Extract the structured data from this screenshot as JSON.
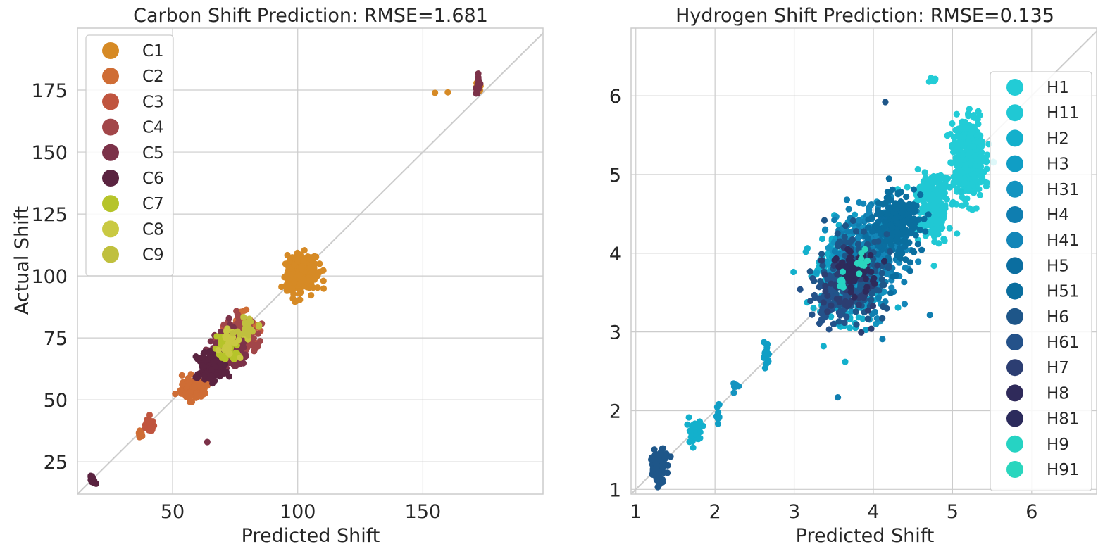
{
  "chart_data": [
    {
      "type": "scatter",
      "title": "Carbon Shift Prediction: RMSE=1.681",
      "xlabel": "Predicted Shift",
      "ylabel": "Actual Shift",
      "xlim": [
        12,
        198
      ],
      "ylim": [
        12,
        200
      ],
      "xticks": [
        50,
        100,
        150
      ],
      "yticks": [
        25,
        50,
        75,
        100,
        125,
        150,
        175
      ],
      "grid": true,
      "diagonal": "y = x reference line",
      "legend_position": "upper-left",
      "series": [
        {
          "name": "C1",
          "color": "#d68a25",
          "clusters": [
            {
              "x": 101,
              "y": 101,
              "sx": 3.0,
              "sy": 4.0,
              "n": 260
            },
            {
              "x": 172,
              "y": 176,
              "sx": 0.6,
              "sy": 1.2,
              "n": 10
            },
            {
              "x": 160,
              "y": 174,
              "sx": 0.1,
              "sy": 0.1,
              "n": 1
            },
            {
              "x": 155,
              "y": 174,
              "sx": 0.1,
              "sy": 0.1,
              "n": 1
            }
          ]
        },
        {
          "name": "C2",
          "color": "#cf6d35",
          "clusters": [
            {
              "x": 58,
              "y": 55,
              "sx": 2.8,
              "sy": 2.2,
              "n": 90
            },
            {
              "x": 79,
              "y": 80,
              "sx": 2.5,
              "sy": 3.0,
              "n": 40
            },
            {
              "x": 37,
              "y": 36,
              "sx": 0.6,
              "sy": 1.0,
              "n": 12
            }
          ]
        },
        {
          "name": "C3",
          "color": "#c0553f",
          "clusters": [
            {
              "x": 41,
              "y": 40,
              "sx": 0.8,
              "sy": 2.0,
              "n": 30
            },
            {
              "x": 77,
              "y": 76,
              "sx": 3.0,
              "sy": 3.0,
              "n": 80
            }
          ]
        },
        {
          "name": "C4",
          "color": "#a24649",
          "clusters": [
            {
              "x": 76,
              "y": 75,
              "sx": 3.5,
              "sy": 3.5,
              "n": 180
            }
          ]
        },
        {
          "name": "C5",
          "color": "#7c3249",
          "clusters": [
            {
              "x": 72,
              "y": 70,
              "sx": 3.5,
              "sy": 3.5,
              "n": 180
            },
            {
              "x": 172,
              "y": 177,
              "sx": 0.4,
              "sy": 2.0,
              "n": 18
            },
            {
              "x": 64,
              "y": 33,
              "sx": 0.1,
              "sy": 0.1,
              "n": 1
            }
          ]
        },
        {
          "name": "C6",
          "color": "#5a2340",
          "clusters": [
            {
              "x": 66,
              "y": 64,
              "sx": 3.0,
              "sy": 3.0,
              "n": 130
            },
            {
              "x": 18,
              "y": 18,
              "sx": 0.6,
              "sy": 1.0,
              "n": 14
            }
          ]
        },
        {
          "name": "C7",
          "color": "#b6c42a",
          "clusters": [
            {
              "x": 72,
              "y": 71,
              "sx": 2.5,
              "sy": 2.2,
              "n": 45
            }
          ]
        },
        {
          "name": "C8",
          "color": "#c9c942",
          "clusters": [
            {
              "x": 74,
              "y": 73,
              "sx": 2.5,
              "sy": 2.5,
              "n": 25
            }
          ]
        },
        {
          "name": "C9",
          "color": "#c0c03e",
          "clusters": [
            {
              "x": 80,
              "y": 79,
              "sx": 3.0,
              "sy": 2.0,
              "n": 20
            }
          ]
        }
      ]
    },
    {
      "type": "scatter",
      "title": "Hydrogen Shift Prediction: RMSE=0.135",
      "xlabel": "Predicted Shift",
      "ylabel": "",
      "xlim": [
        0.94,
        6.82
      ],
      "ylim": [
        0.94,
        6.86
      ],
      "xticks": [
        1,
        2,
        3,
        4,
        5,
        6
      ],
      "yticks": [
        1,
        2,
        3,
        4,
        5,
        6
      ],
      "grid": true,
      "diagonal": "y = x reference line",
      "legend_position": "right",
      "series": [
        {
          "name": "H1",
          "color": "#22ccd6",
          "clusters": [
            {
              "x": 5.2,
              "y": 5.2,
              "sx": 0.1,
              "sy": 0.25,
              "n": 420
            },
            {
              "x": 4.75,
              "y": 6.2,
              "sx": 0.05,
              "sy": 0.01,
              "n": 8
            }
          ]
        },
        {
          "name": "H11",
          "color": "#20c8d4",
          "clusters": [
            {
              "x": 4.75,
              "y": 4.6,
              "sx": 0.12,
              "sy": 0.22,
              "n": 200
            }
          ]
        },
        {
          "name": "H2",
          "color": "#13b0cc",
          "clusters": [
            {
              "x": 3.6,
              "y": 3.7,
              "sx": 0.2,
              "sy": 0.3,
              "n": 150
            },
            {
              "x": 1.75,
              "y": 1.72,
              "sx": 0.04,
              "sy": 0.1,
              "n": 35
            }
          ]
        },
        {
          "name": "H3",
          "color": "#109ec5",
          "clusters": [
            {
              "x": 3.7,
              "y": 3.8,
              "sx": 0.2,
              "sy": 0.3,
              "n": 150
            },
            {
              "x": 2.65,
              "y": 2.75,
              "sx": 0.02,
              "sy": 0.12,
              "n": 18
            },
            {
              "x": 2.05,
              "y": 2.05,
              "sx": 0.02,
              "sy": 0.12,
              "n": 10
            }
          ]
        },
        {
          "name": "H31",
          "color": "#1494c0",
          "clusters": [
            {
              "x": 3.8,
              "y": 3.9,
              "sx": 0.2,
              "sy": 0.3,
              "n": 120
            },
            {
              "x": 2.25,
              "y": 2.3,
              "sx": 0.02,
              "sy": 0.05,
              "n": 6
            }
          ]
        },
        {
          "name": "H4",
          "color": "#0f7eb0",
          "clusters": [
            {
              "x": 3.9,
              "y": 3.95,
              "sx": 0.22,
              "sy": 0.3,
              "n": 150
            },
            {
              "x": 3.55,
              "y": 2.18,
              "sx": 0.01,
              "sy": 0.01,
              "n": 1
            }
          ]
        },
        {
          "name": "H41",
          "color": "#1386b8",
          "clusters": [
            {
              "x": 4.1,
              "y": 4.1,
              "sx": 0.2,
              "sy": 0.3,
              "n": 120
            }
          ]
        },
        {
          "name": "H5",
          "color": "#0b6ea0",
          "clusters": [
            {
              "x": 4.2,
              "y": 4.3,
              "sx": 0.18,
              "sy": 0.25,
              "n": 130
            }
          ]
        },
        {
          "name": "H51",
          "color": "#0a6e9e",
          "clusters": [
            {
              "x": 4.3,
              "y": 4.4,
              "sx": 0.15,
              "sy": 0.2,
              "n": 100
            }
          ]
        },
        {
          "name": "H6",
          "color": "#1e5689",
          "clusters": [
            {
              "x": 3.8,
              "y": 3.7,
              "sx": 0.22,
              "sy": 0.3,
              "n": 150
            },
            {
              "x": 1.28,
              "y": 1.28,
              "sx": 0.05,
              "sy": 0.1,
              "n": 90
            },
            {
              "x": 4.15,
              "y": 5.92,
              "sx": 0.01,
              "sy": 0.01,
              "n": 1
            }
          ]
        },
        {
          "name": "H61",
          "color": "#24528a",
          "clusters": [
            {
              "x": 3.5,
              "y": 3.4,
              "sx": 0.15,
              "sy": 0.2,
              "n": 70
            }
          ]
        },
        {
          "name": "H7",
          "color": "#2c3e72",
          "clusters": [
            {
              "x": 3.7,
              "y": 3.6,
              "sx": 0.15,
              "sy": 0.2,
              "n": 60
            }
          ]
        },
        {
          "name": "H8",
          "color": "#2f2a5a",
          "clusters": [
            {
              "x": 3.75,
              "y": 3.75,
              "sx": 0.12,
              "sy": 0.15,
              "n": 40
            }
          ]
        },
        {
          "name": "H81",
          "color": "#2c2b5c",
          "clusters": [
            {
              "x": 3.8,
              "y": 3.75,
              "sx": 0.1,
              "sy": 0.12,
              "n": 30
            }
          ]
        },
        {
          "name": "H9",
          "color": "#26d3c3",
          "clusters": [
            {
              "x": 3.6,
              "y": 3.6,
              "sx": 0.02,
              "sy": 0.08,
              "n": 10
            }
          ]
        },
        {
          "name": "H91",
          "color": "#2ad6be",
          "clusters": [
            {
              "x": 3.85,
              "y": 3.85,
              "sx": 0.03,
              "sy": 0.08,
              "n": 10
            }
          ]
        }
      ]
    }
  ]
}
